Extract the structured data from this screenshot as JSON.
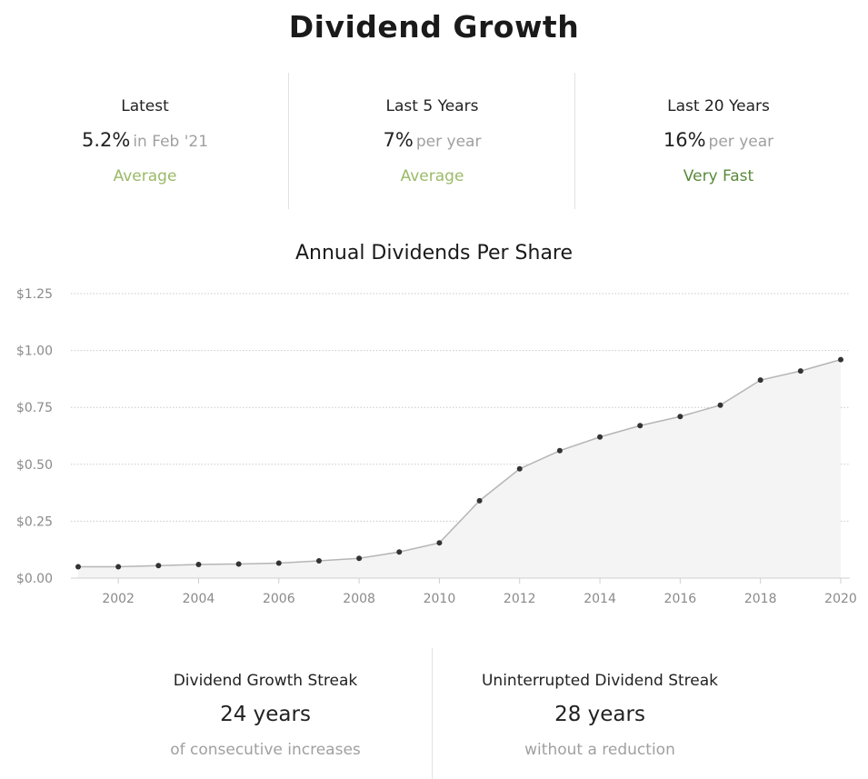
{
  "title": "Dividend Growth",
  "stats": [
    {
      "label": "Latest",
      "value": "5.2%",
      "suffix": "in Feb '21",
      "rating": "Average",
      "rating_color": "#9bba68"
    },
    {
      "label": "Last 5 Years",
      "value": "7%",
      "suffix": "per year",
      "rating": "Average",
      "rating_color": "#9bba68"
    },
    {
      "label": "Last 20 Years",
      "value": "16%",
      "suffix": "per year",
      "rating": "Very Fast",
      "rating_color": "#5a8a3c"
    }
  ],
  "chart_data": {
    "type": "area",
    "title": "Annual Dividends Per Share",
    "x": [
      2001,
      2002,
      2003,
      2004,
      2005,
      2006,
      2007,
      2008,
      2009,
      2010,
      2011,
      2012,
      2013,
      2014,
      2015,
      2016,
      2017,
      2018,
      2019,
      2020
    ],
    "values": [
      0.05,
      0.05,
      0.055,
      0.06,
      0.062,
      0.066,
      0.076,
      0.087,
      0.115,
      0.155,
      0.34,
      0.48,
      0.56,
      0.62,
      0.67,
      0.71,
      0.76,
      0.87,
      0.91,
      0.96
    ],
    "xticks": [
      2002,
      2004,
      2006,
      2008,
      2010,
      2012,
      2014,
      2016,
      2018,
      2020
    ],
    "yticks": [
      0,
      0.25,
      0.5,
      0.75,
      1.0,
      1.25
    ],
    "ytick_labels": [
      "$0.00",
      "$0.25",
      "$0.50",
      "$0.75",
      "$1.00",
      "$1.25"
    ],
    "ylim": [
      0,
      1.25
    ],
    "xlim": [
      2001,
      2020
    ],
    "grid": true,
    "line_color": "#b5b5b5",
    "fill_color": "#f4f4f4",
    "point_color": "#333333"
  },
  "streaks": [
    {
      "label": "Dividend Growth Streak",
      "value": "24 years",
      "note": "of consecutive increases"
    },
    {
      "label": "Uninterrupted Dividend Streak",
      "value": "28 years",
      "note": "without a reduction"
    }
  ]
}
